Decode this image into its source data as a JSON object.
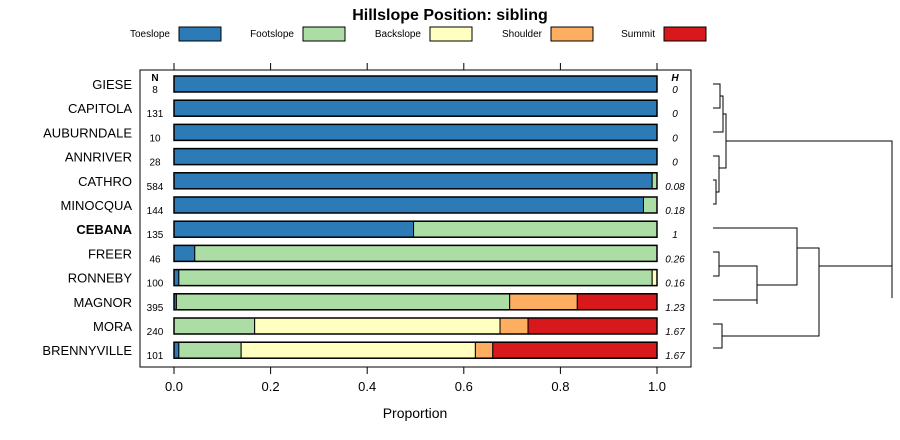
{
  "chart_data": {
    "type": "bar",
    "orientation": "horizontal",
    "stacked": true,
    "title": "Hillslope Position: sibling",
    "xlabel": "Proportion",
    "ylabel": "",
    "xlim": [
      0,
      1
    ],
    "xticks": [
      "0.0",
      "0.2",
      "0.4",
      "0.6",
      "0.8",
      "1.0"
    ],
    "legend_position": "top",
    "n_header": "N",
    "h_header": "H",
    "series": [
      {
        "name": "Toeslope",
        "color": "#2c7bb6"
      },
      {
        "name": "Footslope",
        "color": "#abdda4"
      },
      {
        "name": "Backslope",
        "color": "#ffffbf"
      },
      {
        "name": "Shoulder",
        "color": "#fdae61"
      },
      {
        "name": "Summit",
        "color": "#d7191c"
      }
    ],
    "rows": [
      {
        "name": "GIESE",
        "n": "8",
        "h": "0",
        "bold": false,
        "values": [
          1.0,
          0,
          0,
          0,
          0
        ]
      },
      {
        "name": "CAPITOLA",
        "n": "131",
        "h": "0",
        "bold": false,
        "values": [
          1.0,
          0,
          0,
          0,
          0
        ]
      },
      {
        "name": "AUBURNDALE",
        "n": "10",
        "h": "0",
        "bold": false,
        "values": [
          1.0,
          0,
          0,
          0,
          0
        ]
      },
      {
        "name": "ANNRIVER",
        "n": "28",
        "h": "0",
        "bold": false,
        "values": [
          1.0,
          0,
          0,
          0,
          0
        ]
      },
      {
        "name": "CATHRO",
        "n": "584",
        "h": "0.08",
        "bold": false,
        "values": [
          0.99,
          0.01,
          0,
          0,
          0
        ]
      },
      {
        "name": "MINOCQUA",
        "n": "144",
        "h": "0.18",
        "bold": false,
        "values": [
          0.972,
          0.028,
          0,
          0,
          0
        ]
      },
      {
        "name": "CEBANA",
        "n": "135",
        "h": "1",
        "bold": true,
        "values": [
          0.496,
          0.504,
          0,
          0,
          0
        ]
      },
      {
        "name": "FREER",
        "n": "46",
        "h": "0.26",
        "bold": false,
        "values": [
          0.043,
          0.957,
          0,
          0,
          0
        ]
      },
      {
        "name": "RONNEBY",
        "n": "100",
        "h": "0.16",
        "bold": false,
        "values": [
          0.01,
          0.98,
          0.01,
          0,
          0
        ]
      },
      {
        "name": "MAGNOR",
        "n": "395",
        "h": "1.23",
        "bold": false,
        "values": [
          0.005,
          0.69,
          0.0,
          0.14,
          0.165
        ]
      },
      {
        "name": "MORA",
        "n": "240",
        "h": "1.67",
        "bold": false,
        "values": [
          0.0,
          0.167,
          0.508,
          0.058,
          0.267
        ]
      },
      {
        "name": "BRENNYVILLE",
        "n": "101",
        "h": "1.67",
        "bold": false,
        "values": [
          0.01,
          0.129,
          0.485,
          0.036,
          0.34
        ]
      }
    ]
  }
}
